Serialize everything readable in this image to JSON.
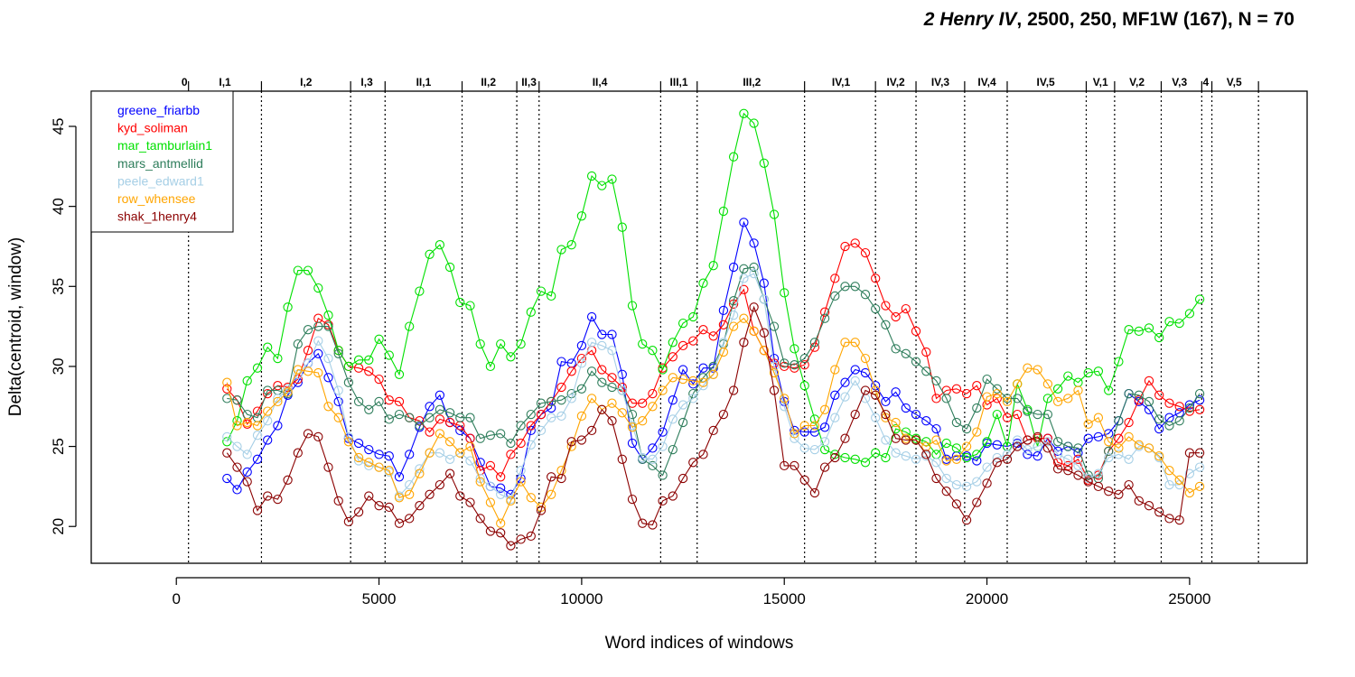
{
  "chart_data": {
    "type": "line",
    "title": "2 Henry IV, 2500, 250, MF1W (167), N = 70",
    "title_parts": {
      "play": "2 Henry IV",
      "rest": ", 2500, 250, MF1W (167), N = 70"
    },
    "xlabel": "Word indices of windows",
    "ylabel": "Delta(centroid, window)",
    "xlim": [
      -2100,
      27900
    ],
    "ylim": [
      17.7,
      47.2
    ],
    "xticks": [
      0,
      5000,
      10000,
      15000,
      20000,
      25000
    ],
    "xtick_labels": [
      "0",
      "5000",
      "10000",
      "15000",
      "20000",
      "25000"
    ],
    "yticks": [
      20,
      25,
      30,
      35,
      40,
      45
    ],
    "ytick_labels": [
      "20",
      "25",
      "30",
      "35",
      "40",
      "45"
    ],
    "x": [
      1250,
      1500,
      1750,
      2000,
      2250,
      2500,
      2750,
      3000,
      3250,
      3500,
      3750,
      4000,
      4250,
      4500,
      4750,
      5000,
      5250,
      5500,
      5750,
      6000,
      6250,
      6500,
      6750,
      7000,
      7250,
      7500,
      7750,
      8000,
      8250,
      8500,
      8750,
      9000,
      9250,
      9500,
      9750,
      10000,
      10250,
      10500,
      10750,
      11000,
      11250,
      11500,
      11750,
      12000,
      12250,
      12500,
      12750,
      13000,
      13250,
      13500,
      13750,
      14000,
      14250,
      14500,
      14750,
      15000,
      15250,
      15500,
      15750,
      16000,
      16250,
      16500,
      16750,
      17000,
      17250,
      17500,
      17750,
      18000,
      18250,
      18500,
      18750,
      19000,
      19250,
      19500,
      19750,
      20000,
      20250,
      20500,
      20750,
      21000,
      21250,
      21500,
      21750,
      22000,
      22250,
      22500,
      22750,
      23000,
      23250,
      23500,
      23750,
      24000,
      24250,
      24500,
      24750,
      25000,
      25250
    ],
    "series": [
      {
        "name": "greene_friarbb",
        "color": "#0000ff",
        "values": [
          23.0,
          22.3,
          23.4,
          24.2,
          25.4,
          26.3,
          28.2,
          29.0,
          30.2,
          30.8,
          29.3,
          27.8,
          25.5,
          25.2,
          24.8,
          24.5,
          24.4,
          23.1,
          24.5,
          26.2,
          27.5,
          28.2,
          26.5,
          26.0,
          25.5,
          24.0,
          22.5,
          22.4,
          22.0,
          23.0,
          26.0,
          27.0,
          27.4,
          30.3,
          30.2,
          31.3,
          33.1,
          32.0,
          32.0,
          29.5,
          25.2,
          24.2,
          24.9,
          25.9,
          27.9,
          29.8,
          28.9,
          29.9,
          29.9,
          33.5,
          36.2,
          39.0,
          37.7,
          35.2,
          30.5,
          27.8,
          26.0,
          25.9,
          25.9,
          26.2,
          28.2,
          29.0,
          29.8,
          29.6,
          28.8,
          27.8,
          28.4,
          27.4,
          27.0,
          26.6,
          26.1,
          24.2,
          24.4,
          24.4,
          24.1,
          25.2,
          25.1,
          25.0,
          25.2,
          24.5,
          24.4,
          25.5,
          24.7,
          25.0,
          24.6,
          25.5,
          25.6,
          25.8,
          26.6,
          28.3,
          27.8,
          27.3,
          26.1,
          26.8,
          27.1,
          27.6,
          27.9
        ]
      },
      {
        "name": "kyd_soliman",
        "color": "#ff0000",
        "values": [
          28.6,
          27.9,
          26.4,
          27.2,
          28.3,
          28.8,
          28.7,
          29.2,
          31.0,
          33.0,
          32.6,
          31.0,
          30.0,
          29.9,
          29.7,
          29.2,
          27.9,
          27.8,
          26.8,
          26.6,
          25.9,
          26.7,
          26.5,
          26.3,
          25.5,
          23.5,
          23.8,
          23.1,
          24.5,
          25.2,
          26.3,
          27.0,
          27.8,
          28.7,
          29.7,
          30.5,
          31.0,
          29.8,
          29.3,
          28.7,
          27.7,
          27.7,
          28.3,
          29.9,
          30.6,
          31.3,
          31.6,
          32.3,
          31.9,
          32.6,
          33.9,
          34.8,
          32.2,
          31.0,
          30.2,
          30.0,
          29.9,
          30.1,
          31.2,
          33.4,
          35.5,
          37.5,
          37.7,
          37.1,
          35.5,
          33.8,
          33.1,
          33.6,
          32.2,
          30.9,
          28.0,
          28.5,
          28.6,
          28.3,
          28.8,
          27.6,
          28.0,
          26.8,
          27.0,
          25.4,
          25.5,
          25.5,
          24.0,
          23.8,
          24.2,
          22.9,
          23.2,
          24.7,
          25.5,
          26.5,
          27.9,
          29.1,
          28.2,
          27.7,
          27.5,
          27.2,
          27.3
        ]
      },
      {
        "name": "mar_tamburlain1",
        "color": "#00e000",
        "values": [
          25.3,
          26.6,
          29.1,
          29.9,
          31.2,
          30.5,
          33.7,
          36.0,
          36.0,
          34.9,
          33.2,
          31.0,
          30.0,
          30.4,
          30.4,
          31.7,
          30.7,
          29.5,
          32.5,
          34.7,
          37.0,
          37.6,
          36.2,
          34.0,
          33.8,
          31.4,
          30.0,
          31.4,
          30.6,
          31.4,
          33.4,
          34.7,
          34.4,
          37.3,
          37.6,
          39.4,
          41.9,
          41.3,
          41.7,
          38.7,
          33.8,
          31.4,
          31.0,
          29.8,
          31.5,
          32.7,
          33.1,
          35.2,
          36.3,
          39.7,
          43.1,
          45.8,
          45.2,
          42.7,
          39.5,
          34.6,
          31.1,
          28.8,
          26.7,
          24.8,
          24.5,
          24.3,
          24.2,
          24.0,
          24.6,
          24.3,
          26.1,
          25.9,
          25.5,
          25.3,
          24.5,
          25.2,
          24.9,
          24.3,
          24.5,
          25.3,
          27.0,
          25.0,
          28.9,
          27.3,
          25.0,
          28.0,
          28.6,
          29.4,
          29.0,
          29.6,
          29.7,
          28.5,
          30.3,
          32.3,
          32.2,
          32.4,
          31.8,
          32.8,
          32.7,
          33.3,
          34.2
        ]
      },
      {
        "name": "mars_antmellid",
        "color": "#2e7d5b",
        "values": [
          28.0,
          27.9,
          27.0,
          26.8,
          28.5,
          28.5,
          28.3,
          31.4,
          32.3,
          32.5,
          32.5,
          30.8,
          29.0,
          27.8,
          27.3,
          27.8,
          26.7,
          27.0,
          26.8,
          26.3,
          26.8,
          27.3,
          27.1,
          26.8,
          26.8,
          25.5,
          25.7,
          25.8,
          25.2,
          26.3,
          27.0,
          27.7,
          27.8,
          27.9,
          28.3,
          28.6,
          29.7,
          29.0,
          28.7,
          28.5,
          27.0,
          24.2,
          23.8,
          23.2,
          24.8,
          26.5,
          28.3,
          29.3,
          30.0,
          31.4,
          34.1,
          36.1,
          36.2,
          34.2,
          32.5,
          30.2,
          30.1,
          30.5,
          31.5,
          33.0,
          34.4,
          35.0,
          35.0,
          34.5,
          33.6,
          32.6,
          31.1,
          30.8,
          30.3,
          29.7,
          29.1,
          28.0,
          26.5,
          26.1,
          27.4,
          29.2,
          28.6,
          28.0,
          28.0,
          27.2,
          27.0,
          27.0,
          25.3,
          25.0,
          24.9,
          23.2,
          23.0,
          24.7,
          26.6,
          28.3,
          28.2,
          27.8,
          26.7,
          26.3,
          26.6,
          27.4,
          28.3
        ]
      },
      {
        "name": "peele_edward1",
        "color": "#a6cfe6",
        "values": [
          25.6,
          25.0,
          24.5,
          25.7,
          26.6,
          28.0,
          28.6,
          29.5,
          30.2,
          31.6,
          30.5,
          28.5,
          25.6,
          24.1,
          23.8,
          23.7,
          23.4,
          21.9,
          22.6,
          23.6,
          24.6,
          24.6,
          24.2,
          24.6,
          24.1,
          23.0,
          22.5,
          22.0,
          21.7,
          23.5,
          25.1,
          26.0,
          26.8,
          26.9,
          28.0,
          30.2,
          31.5,
          31.3,
          31.0,
          28.5,
          26.3,
          24.3,
          24.2,
          25.0,
          26.7,
          27.6,
          28.0,
          28.8,
          29.5,
          31.5,
          33.2,
          35.5,
          35.8,
          34.2,
          30.0,
          27.5,
          25.5,
          24.9,
          24.8,
          25.3,
          26.8,
          28.1,
          29.1,
          28.0,
          26.8,
          25.4,
          24.6,
          24.4,
          24.2,
          24.4,
          24.0,
          23.0,
          22.6,
          22.5,
          22.8,
          23.7,
          24.3,
          24.5,
          25.4,
          24.8,
          25.0,
          25.3,
          24.5,
          24.2,
          23.8,
          23.0,
          23.3,
          24.3,
          24.5,
          24.2,
          25.0,
          24.9,
          24.3,
          22.6,
          22.6,
          23.3,
          23.7
        ]
      },
      {
        "name": "row_whensee",
        "color": "#ffa500",
        "values": [
          29.0,
          26.3,
          26.5,
          26.3,
          27.2,
          27.8,
          28.4,
          29.8,
          29.7,
          29.6,
          27.5,
          26.8,
          25.3,
          24.3,
          24.0,
          23.7,
          23.5,
          21.8,
          22.0,
          23.3,
          24.6,
          25.8,
          25.3,
          24.6,
          25.0,
          22.8,
          21.5,
          20.2,
          21.6,
          22.8,
          21.8,
          21.2,
          22.0,
          23.5,
          25.0,
          26.9,
          28.0,
          27.3,
          27.7,
          27.1,
          26.2,
          26.6,
          27.5,
          28.5,
          29.3,
          29.2,
          29.1,
          29.0,
          29.5,
          30.9,
          32.5,
          33.0,
          32.2,
          31.0,
          29.6,
          28.0,
          25.8,
          26.3,
          26.3,
          27.3,
          29.8,
          31.5,
          31.5,
          30.5,
          28.5,
          26.8,
          26.5,
          25.5,
          25.4,
          25.0,
          25.4,
          24.1,
          24.2,
          25.0,
          25.9,
          28.1,
          28.3,
          27.8,
          28.9,
          29.9,
          29.8,
          28.9,
          27.8,
          28.0,
          28.5,
          26.4,
          26.8,
          25.3,
          24.9,
          25.6,
          25.1,
          24.9,
          24.4,
          23.5,
          22.9,
          22.1,
          22.5
        ]
      },
      {
        "name": "shak_1henry4",
        "color": "#8b0000",
        "values": [
          24.6,
          23.7,
          22.8,
          21.0,
          21.9,
          21.7,
          22.9,
          24.6,
          25.8,
          25.6,
          23.7,
          21.6,
          20.3,
          20.9,
          21.9,
          21.3,
          21.2,
          20.2,
          20.5,
          21.3,
          22.0,
          22.6,
          23.3,
          21.9,
          21.5,
          20.5,
          19.7,
          19.6,
          18.8,
          19.2,
          19.4,
          21.0,
          23.1,
          23.0,
          25.3,
          25.4,
          26.0,
          27.3,
          26.6,
          24.2,
          21.7,
          20.2,
          20.1,
          21.6,
          21.9,
          23.0,
          24.0,
          24.5,
          26.0,
          27.0,
          28.5,
          31.5,
          33.7,
          32.1,
          28.5,
          23.8,
          23.8,
          22.9,
          22.1,
          23.7,
          24.3,
          25.5,
          27.0,
          28.5,
          28.2,
          27.0,
          25.5,
          25.4,
          25.4,
          24.5,
          23.0,
          22.2,
          21.4,
          20.4,
          21.5,
          22.7,
          24.0,
          24.2,
          25.0,
          25.4,
          25.6,
          24.9,
          23.6,
          23.5,
          23.2,
          22.8,
          22.5,
          22.2,
          22.0,
          22.6,
          21.6,
          21.3,
          20.9,
          20.5,
          20.4,
          24.6,
          24.6
        ]
      }
    ],
    "scene_boundaries": [
      300,
      2100,
      4300,
      5150,
      7050,
      8400,
      8950,
      11950,
      12850,
      15500,
      17250,
      18250,
      19450,
      20500,
      22450,
      23150,
      24300,
      25300,
      25550,
      26700
    ],
    "scene_labels": [
      {
        "label": "0",
        "x": 200
      },
      {
        "label": "I,1",
        "x": 1200
      },
      {
        "label": "I,2",
        "x": 3200
      },
      {
        "label": "I,3",
        "x": 4700
      },
      {
        "label": "II,1",
        "x": 6100
      },
      {
        "label": "II,2",
        "x": 7700
      },
      {
        "label": "II,3",
        "x": 8700
      },
      {
        "label": "II,4",
        "x": 10450
      },
      {
        "label": "III,1",
        "x": 12400
      },
      {
        "label": "III,2",
        "x": 14200
      },
      {
        "label": "IV,1",
        "x": 16400
      },
      {
        "label": "IV,2",
        "x": 17750
      },
      {
        "label": "IV,3",
        "x": 18850
      },
      {
        "label": "IV,4",
        "x": 20000
      },
      {
        "label": "IV,5",
        "x": 21450
      },
      {
        "label": "V,1",
        "x": 22800
      },
      {
        "label": "V,2",
        "x": 23700
      },
      {
        "label": "V,3",
        "x": 24750
      },
      {
        "label": "4",
        "x": 25400
      },
      {
        "label": "V,5",
        "x": 26100
      }
    ],
    "legend_position": "top-left",
    "grid": false,
    "marker": "open-circle"
  }
}
